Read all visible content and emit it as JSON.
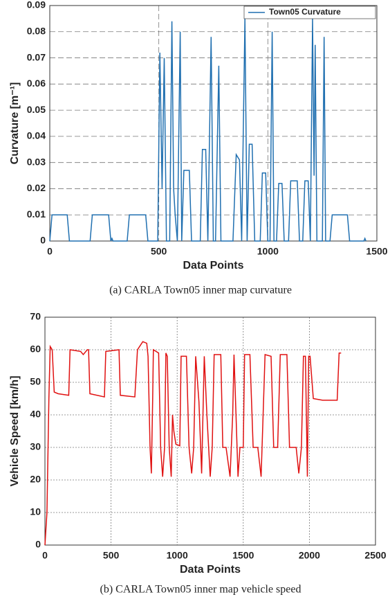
{
  "chart_data": [
    {
      "type": "line",
      "caption": "(a) CARLA Town05 inner map curvature",
      "x_label": "Data Points",
      "y_label": "Curvature [m⁻¹]",
      "xlim": [
        0,
        1500
      ],
      "xticks": [
        0,
        500,
        1000,
        1500
      ],
      "ylim": [
        0,
        0.09
      ],
      "yticks": [
        0,
        0.01,
        0.02,
        0.03,
        0.04,
        0.05,
        0.06,
        0.07,
        0.08,
        0.09
      ],
      "grid": true,
      "grid_style": "dashed",
      "legend": "upper right",
      "x": [
        0,
        10,
        80,
        90,
        185,
        195,
        270,
        280,
        285,
        290,
        355,
        365,
        440,
        450,
        495,
        505,
        515,
        525,
        535,
        550,
        560,
        568,
        575,
        585,
        598,
        605,
        615,
        640,
        650,
        690,
        700,
        715,
        725,
        740,
        750,
        760,
        775,
        785,
        840,
        855,
        870,
        880,
        895,
        905,
        915,
        928,
        940,
        965,
        975,
        990,
        1000,
        1010,
        1020,
        1028,
        1040,
        1050,
        1065,
        1075,
        1095,
        1105,
        1135,
        1145,
        1160,
        1170,
        1185,
        1195,
        1205,
        1212,
        1217,
        1225,
        1250,
        1258,
        1265,
        1285,
        1295,
        1365,
        1375,
        1440,
        1445,
        1450
      ],
      "series": [
        {
          "name": "Town05 Curvature",
          "color": "#1f6fb0",
          "values": [
            0,
            0.01,
            0.01,
            0,
            0,
            0.01,
            0.01,
            0,
            0.001,
            0,
            0,
            0.01,
            0.01,
            0,
            0,
            0.072,
            0.02,
            0.07,
            0,
            0,
            0.084,
            0.02,
            0.01,
            0,
            0.08,
            0,
            0.027,
            0.027,
            0,
            0,
            0.035,
            0.035,
            0,
            0.078,
            0,
            0,
            0.067,
            0,
            0,
            0.033,
            0.031,
            0,
            0.085,
            0,
            0.037,
            0.037,
            0,
            0,
            0.026,
            0.026,
            0,
            0,
            0.08,
            0,
            0,
            0.022,
            0.022,
            0,
            0,
            0.023,
            0.023,
            0,
            0,
            0.023,
            0.023,
            0,
            0.085,
            0.025,
            0.075,
            0,
            0,
            0.078,
            0,
            0,
            0.01,
            0.01,
            0,
            0,
            0.001,
            0
          ]
        }
      ]
    },
    {
      "type": "line",
      "caption": "(b) CARLA Town05 inner map vehicle speed",
      "x_label": "Data Points",
      "y_label": "Vehicle Speed [km/h]",
      "xlim": [
        0,
        2500
      ],
      "xticks": [
        0,
        500,
        1000,
        1500,
        2000,
        2500
      ],
      "ylim": [
        0,
        70
      ],
      "yticks": [
        0,
        10,
        20,
        30,
        40,
        50,
        60,
        70
      ],
      "grid": true,
      "grid_style": "dotted",
      "color": "#e01010",
      "x": [
        0,
        15,
        30,
        40,
        55,
        70,
        100,
        180,
        190,
        270,
        290,
        320,
        330,
        340,
        450,
        460,
        560,
        570,
        680,
        700,
        740,
        770,
        780,
        795,
        805,
        815,
        820,
        860,
        875,
        890,
        905,
        915,
        925,
        940,
        955,
        965,
        975,
        990,
        1020,
        1030,
        1070,
        1090,
        1110,
        1125,
        1140,
        1165,
        1185,
        1205,
        1225,
        1250,
        1265,
        1280,
        1330,
        1345,
        1370,
        1400,
        1420,
        1430,
        1445,
        1460,
        1475,
        1500,
        1510,
        1550,
        1575,
        1610,
        1635,
        1650,
        1665,
        1710,
        1730,
        1760,
        1780,
        1830,
        1850,
        1900,
        1920,
        1940,
        1955,
        1970,
        1985,
        1995,
        2005,
        2030,
        2100,
        2210,
        2225,
        2240
      ],
      "values": [
        0,
        10,
        45,
        61,
        60,
        47,
        46.5,
        46,
        60,
        59.5,
        58.5,
        60,
        60,
        46.5,
        45.5,
        59.5,
        60,
        46,
        45.5,
        60,
        62.5,
        62,
        58,
        30,
        22,
        45,
        60,
        59,
        30,
        21,
        30,
        59,
        58,
        30,
        21,
        40,
        35,
        31,
        30.5,
        58,
        58,
        30,
        22,
        30,
        58,
        44,
        22,
        58,
        40,
        21,
        30,
        58.5,
        58.5,
        30,
        30,
        21,
        40,
        58.5,
        40,
        21,
        30,
        30,
        58.5,
        58.5,
        30,
        30,
        21,
        40,
        58.5,
        58,
        30,
        30,
        58.5,
        58.5,
        30,
        30,
        22,
        30,
        58,
        58,
        21,
        58,
        58,
        45,
        44.5,
        44.5,
        59,
        59
      ]
    }
  ]
}
